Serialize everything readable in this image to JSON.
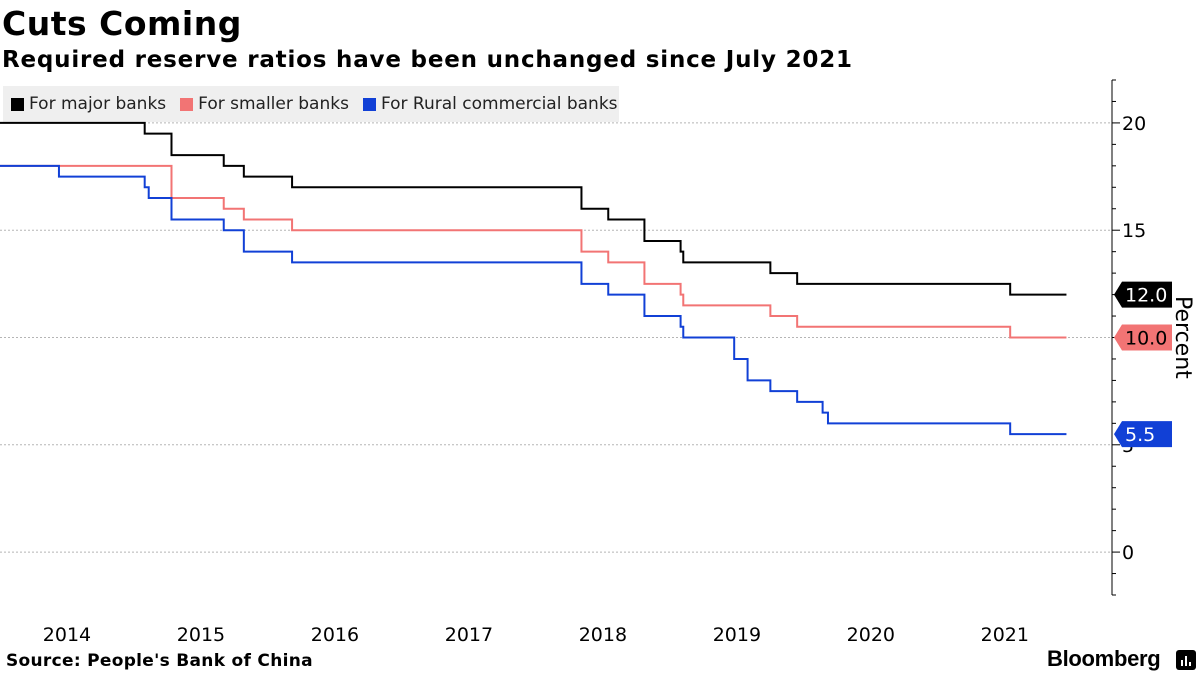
{
  "header": {
    "title": "Cuts Coming",
    "subtitle": "Required reserve ratios have been unchanged since July 2021"
  },
  "footer": {
    "source": "Source:  People's Bank of China",
    "brand": "Bloomberg"
  },
  "chart_data": {
    "type": "line",
    "title": "Cuts Coming",
    "subtitle": "Required reserve ratios have been unchanged since July 2021",
    "xlabel": "",
    "ylabel": "Percent",
    "ylim": [
      -2,
      22
    ],
    "xlim": [
      2013.5,
      2021.8
    ],
    "y_ticks": [
      0,
      5,
      10,
      15,
      20
    ],
    "x_ticks": [
      {
        "label": "2014",
        "pos": 2014.0
      },
      {
        "label": "2015",
        "pos": 2015.0
      },
      {
        "label": "2016",
        "pos": 2016.0
      },
      {
        "label": "2017",
        "pos": 2017.0
      },
      {
        "label": "2018",
        "pos": 2018.0
      },
      {
        "label": "2019",
        "pos": 2019.0
      },
      {
        "label": "2020",
        "pos": 2020.0
      },
      {
        "label": "2021",
        "pos": 2021.0
      }
    ],
    "grid": "horizontal",
    "legend": "top-left",
    "series": [
      {
        "name": "For major banks",
        "color": "#000000",
        "last_label": "12.0",
        "steps": [
          [
            2013.5,
            20.0
          ],
          [
            2014.58,
            19.5
          ],
          [
            2014.78,
            18.5
          ],
          [
            2015.17,
            18.0
          ],
          [
            2015.32,
            17.5
          ],
          [
            2015.68,
            17.0
          ],
          [
            2017.84,
            16.0
          ],
          [
            2018.04,
            15.5
          ],
          [
            2018.31,
            14.5
          ],
          [
            2018.58,
            14.0
          ],
          [
            2018.6,
            13.5
          ],
          [
            2019.25,
            13.0
          ],
          [
            2019.45,
            12.5
          ],
          [
            2021.04,
            12.0
          ],
          [
            2021.46,
            12.0
          ]
        ]
      },
      {
        "name": "For smaller banks",
        "color": "#f27474",
        "last_label": "10.0",
        "steps": [
          [
            2013.5,
            18.0
          ],
          [
            2014.78,
            16.5
          ],
          [
            2015.17,
            16.0
          ],
          [
            2015.32,
            15.5
          ],
          [
            2015.68,
            15.0
          ],
          [
            2017.84,
            14.0
          ],
          [
            2018.04,
            13.5
          ],
          [
            2018.31,
            12.5
          ],
          [
            2018.58,
            12.0
          ],
          [
            2018.6,
            11.5
          ],
          [
            2019.25,
            11.0
          ],
          [
            2019.45,
            10.5
          ],
          [
            2021.04,
            10.0
          ],
          [
            2021.46,
            10.0
          ]
        ]
      },
      {
        "name": "For Rural commercial banks",
        "color": "#1140d6",
        "last_label": "5.5",
        "steps": [
          [
            2013.5,
            18.0
          ],
          [
            2013.94,
            17.5
          ],
          [
            2014.58,
            17.0
          ],
          [
            2014.61,
            16.5
          ],
          [
            2014.78,
            15.5
          ],
          [
            2015.17,
            15.0
          ],
          [
            2015.32,
            14.0
          ],
          [
            2015.68,
            13.5
          ],
          [
            2017.84,
            12.5
          ],
          [
            2018.04,
            12.0
          ],
          [
            2018.31,
            11.0
          ],
          [
            2018.58,
            10.5
          ],
          [
            2018.6,
            10.0
          ],
          [
            2018.98,
            9.0
          ],
          [
            2019.08,
            8.0
          ],
          [
            2019.25,
            7.5
          ],
          [
            2019.45,
            7.0
          ],
          [
            2019.64,
            6.5
          ],
          [
            2019.68,
            6.0
          ],
          [
            2021.04,
            5.5
          ],
          [
            2021.46,
            5.5
          ]
        ]
      }
    ]
  }
}
